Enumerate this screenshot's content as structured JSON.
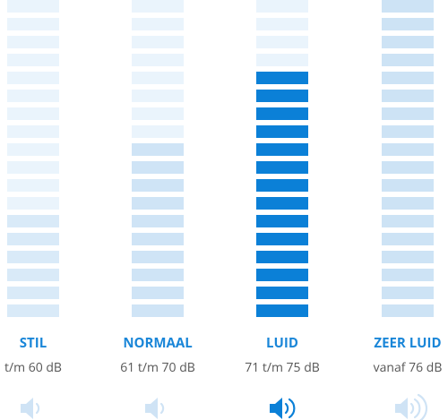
{
  "columns": [
    {
      "label": "STIL",
      "range": "t/m 60 dB"
    },
    {
      "label": "NORMAAL",
      "range": "61 t/m 70 dB"
    },
    {
      "label": "LUID",
      "range": "71 t/m 75 dB"
    },
    {
      "label": "ZEER LUID",
      "range": "vanaf 76 dB"
    }
  ]
}
